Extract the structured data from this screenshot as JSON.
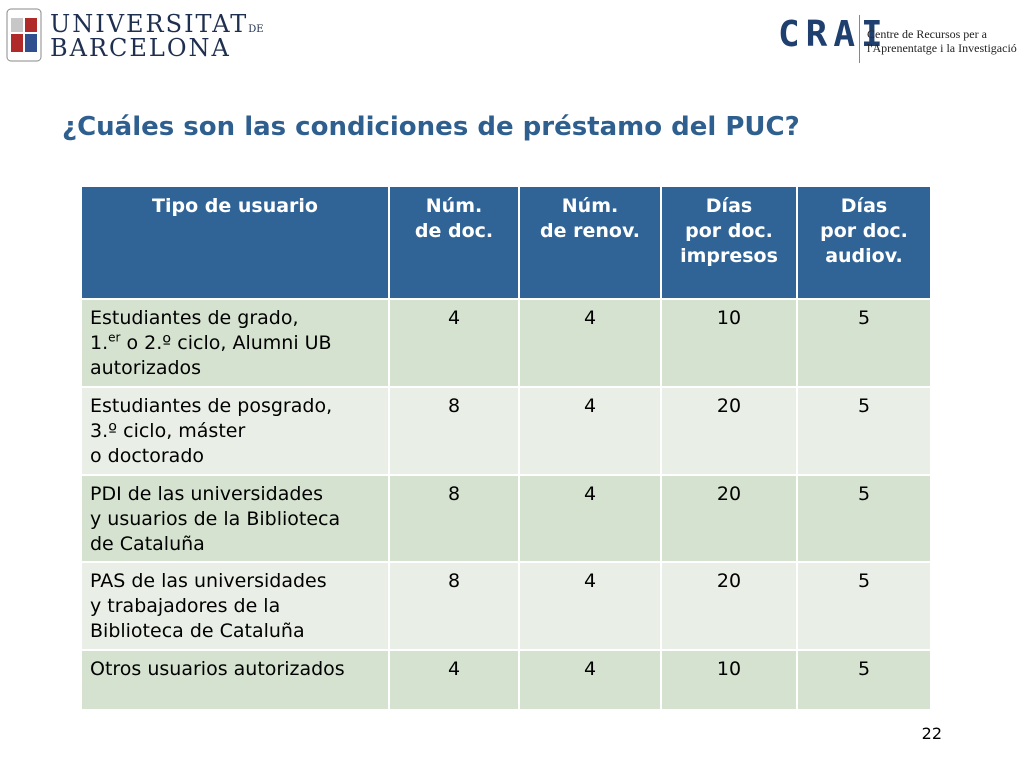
{
  "header": {
    "university": {
      "name_top": "UNIVERSITAT",
      "name_de": "DE",
      "name_bottom": "BARCELONA"
    },
    "crai": {
      "acronym": "CRAI",
      "line1": "Centre de Recursos per a",
      "line2": "l'Aprenentatge i la Investigació"
    }
  },
  "title": "¿Cuáles son las condiciones de préstamo del PUC?",
  "table": {
    "columns": [
      [
        "Tipo de usuario"
      ],
      [
        "Núm.",
        "de doc."
      ],
      [
        "Núm.",
        "de renov."
      ],
      [
        "Días",
        "por doc.",
        "impresos"
      ],
      [
        "Días",
        "por doc.",
        "audiov."
      ]
    ],
    "rows": [
      [
        [
          "Estudiantes de grado,",
          [
            "1.",
            "er",
            " o 2.º ciclo, Alumni UB"
          ],
          "autorizados"
        ],
        4,
        4,
        10,
        5
      ],
      [
        [
          "Estudiantes de posgrado,",
          "3.º ciclo, máster",
          "o doctorado"
        ],
        8,
        4,
        20,
        5
      ],
      [
        [
          "PDI de las universidades",
          "y usuarios de la Biblioteca",
          "de Cataluña"
        ],
        8,
        4,
        20,
        5
      ],
      [
        [
          "PAS de las universidades",
          "y trabajadores de la",
          "Biblioteca de Cataluña"
        ],
        8,
        4,
        20,
        5
      ],
      [
        [
          "Otros usuarios autorizados"
        ],
        4,
        4,
        10,
        5
      ]
    ]
  },
  "page_number": 22
}
